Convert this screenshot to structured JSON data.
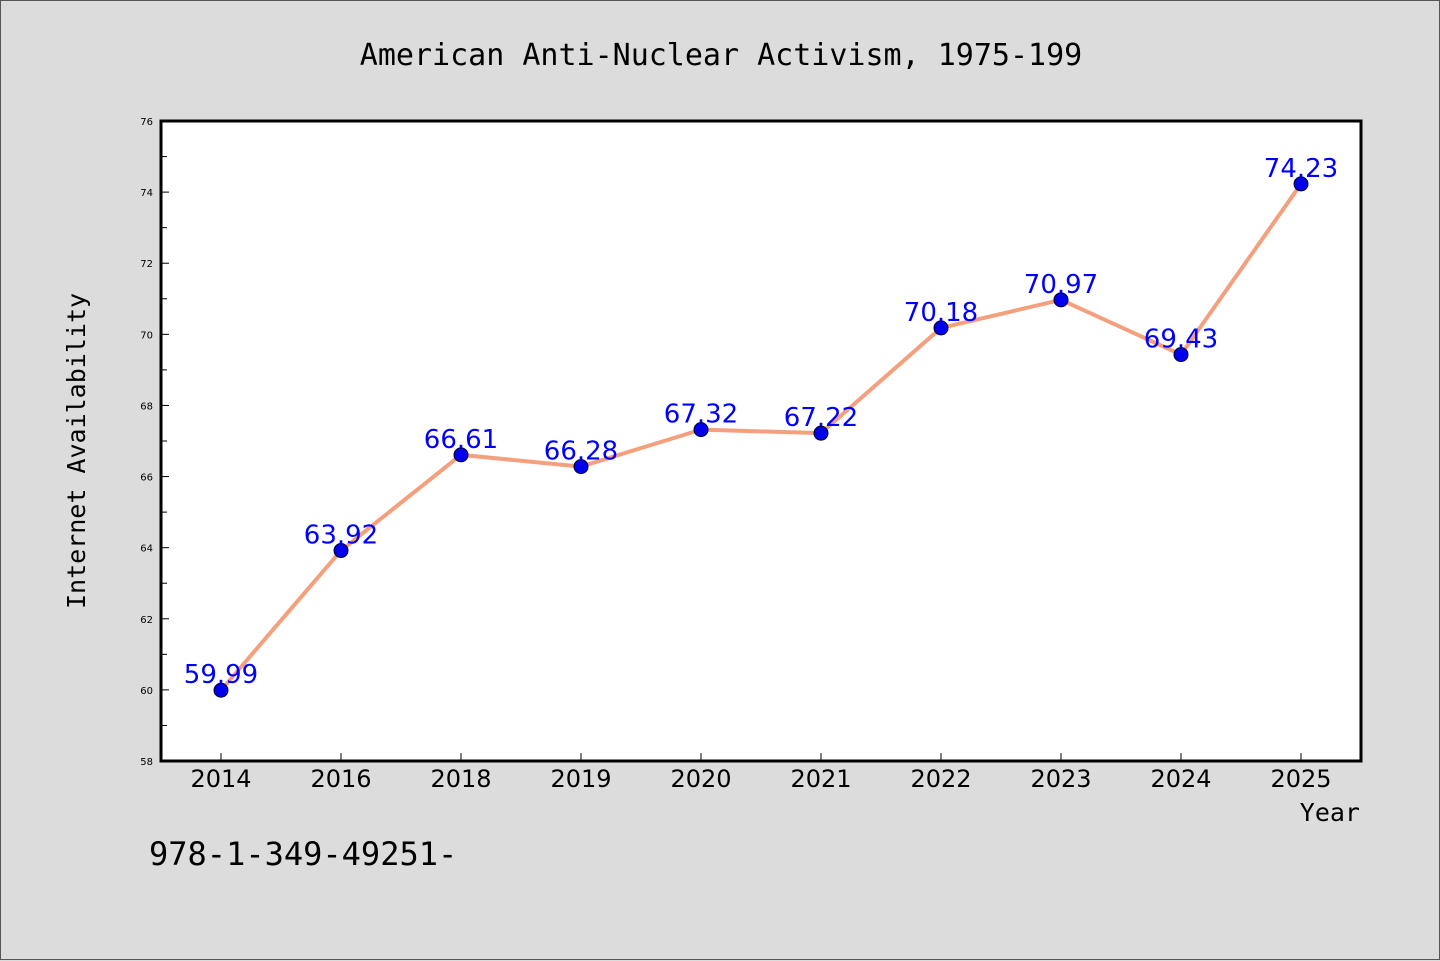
{
  "footer_text": "978-1-349-49251-",
  "colors": {
    "background": "#dcdcdc",
    "plot_background": "#ffffff",
    "line": "#f4a07e",
    "marker": "#0000ee",
    "data_label": "#0000ff"
  },
  "chart_data": {
    "type": "line",
    "title": "American Anti-Nuclear Activism, 1975-199",
    "xlabel": "Year",
    "ylabel": "Internet Availability",
    "categories": [
      "2014",
      "2016",
      "2018",
      "2019",
      "2020",
      "2021",
      "2022",
      "2023",
      "2024",
      "2025"
    ],
    "series": [
      {
        "values": [
          59.99,
          63.92,
          66.61,
          66.28,
          67.32,
          67.22,
          70.18,
          70.97,
          69.43,
          74.23
        ],
        "labels": [
          "59.99",
          "63.92",
          "66.61",
          "66.28",
          "67.32",
          "67.22",
          "70.18",
          "70.97",
          "69.43",
          "74.23"
        ]
      }
    ],
    "ylim": [
      58,
      76
    ],
    "yticks": [
      "58",
      "60",
      "62",
      "64",
      "66",
      "68",
      "70",
      "72",
      "74",
      "76"
    ],
    "grid": false,
    "legend": "none"
  }
}
